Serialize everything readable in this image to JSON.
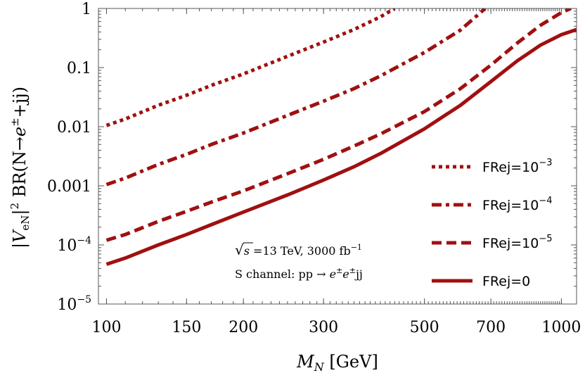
{
  "chart_data": {
    "type": "line",
    "xscale": "log",
    "yscale": "log",
    "xlim": [
      96,
      1080
    ],
    "ylim": [
      1e-05,
      1
    ],
    "x_ticks": [
      {
        "value": 100,
        "label": "100"
      },
      {
        "value": 150,
        "label": "150"
      },
      {
        "value": 200,
        "label": "200"
      },
      {
        "value": 300,
        "label": "300"
      },
      {
        "value": 500,
        "label": "500"
      },
      {
        "value": 700,
        "label": "700"
      },
      {
        "value": 1000,
        "label": "1000"
      }
    ],
    "y_ticks": [
      {
        "value": 1,
        "label": "1"
      },
      {
        "value": 0.1,
        "label": "0.1"
      },
      {
        "value": 0.01,
        "label": "0.01"
      },
      {
        "value": 0.001,
        "label": "0.001"
      },
      {
        "value": 0.0001,
        "base": "10",
        "exp": "−4"
      },
      {
        "value": 1e-05,
        "base": "10",
        "exp": "−5"
      }
    ],
    "xlabel": {
      "main": "M",
      "sub": "N",
      "unit": " [GeV]"
    },
    "ylabel": {
      "v": "|V",
      "sub": "eN",
      "bar_sq": "|",
      "sq": "2",
      "br": " BR(N→",
      "e": "e",
      "pm": "±",
      "rest": "+jj)"
    },
    "annotation": {
      "line1_sqrt": "√",
      "line1_s": "s",
      "line1_text": " =13 TeV, 3000 fb",
      "line1_exp": "−1",
      "line2_text": "S channel: pp → ",
      "line2_e1": "e",
      "line2_pm1": "±",
      "line2_e2": "e",
      "line2_pm2": "±",
      "line2_rest": "jj"
    },
    "color": "#a01010",
    "series": [
      {
        "name": "FRej=10^-3",
        "legend_prefix": "FRej=10",
        "legend_exp": "−3",
        "dash": "dotted",
        "x": [
          100,
          110,
          130,
          150,
          170,
          200,
          250,
          300,
          350,
          400,
          430
        ],
        "y": [
          0.0105,
          0.0135,
          0.023,
          0.034,
          0.05,
          0.078,
          0.155,
          0.27,
          0.44,
          0.72,
          1.0
        ]
      },
      {
        "name": "FRej=10^-4",
        "legend_prefix": "FRej=10",
        "legend_exp": "−4",
        "dash": "dashdot",
        "x": [
          100,
          110,
          130,
          150,
          170,
          200,
          250,
          300,
          350,
          400,
          500,
          600,
          680
        ],
        "y": [
          0.00105,
          0.00135,
          0.0023,
          0.0034,
          0.005,
          0.0078,
          0.0155,
          0.027,
          0.044,
          0.072,
          0.18,
          0.43,
          1.0
        ]
      },
      {
        "name": "FRej=10^-5",
        "legend_prefix": "FRej=10",
        "legend_exp": "−5",
        "dash": "dashed",
        "x": [
          100,
          110,
          130,
          150,
          170,
          200,
          250,
          300,
          350,
          400,
          500,
          600,
          700,
          800,
          900,
          1000,
          1050
        ],
        "y": [
          0.00012,
          0.00015,
          0.00025,
          0.00037,
          0.00053,
          0.00082,
          0.0016,
          0.0028,
          0.0047,
          0.0075,
          0.018,
          0.044,
          0.11,
          0.26,
          0.52,
          0.85,
          1.0
        ]
      },
      {
        "name": "FRej=0",
        "legend_prefix": "FRej=0",
        "legend_exp": "",
        "dash": "solid",
        "x": [
          100,
          110,
          130,
          150,
          170,
          200,
          250,
          300,
          350,
          400,
          500,
          600,
          700,
          800,
          900,
          1000,
          1080
        ],
        "y": [
          4.7e-05,
          6e-05,
          0.0001,
          0.00015,
          0.00022,
          0.00036,
          0.0007,
          0.00125,
          0.0021,
          0.0035,
          0.0092,
          0.023,
          0.058,
          0.13,
          0.24,
          0.36,
          0.44
        ]
      }
    ]
  }
}
